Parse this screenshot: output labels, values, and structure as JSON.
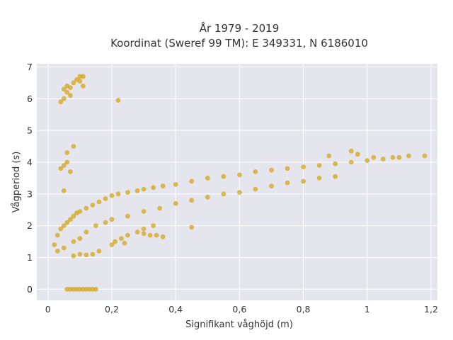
{
  "chart_data": {
    "type": "scatter",
    "title_lines": [
      "År 1979 - 2019",
      "Koordinat (Sweref 99 TM): E 349331, N 6186010"
    ],
    "xlabel": "Signifikant våghöjd (m)",
    "ylabel": "Vågperiod (s)",
    "xlim": [
      -0.035,
      1.22
    ],
    "ylim": [
      -0.35,
      7.1
    ],
    "x_ticks": [
      0,
      0.2,
      0.4,
      0.6,
      0.8,
      1.0,
      1.2
    ],
    "x_tick_labels": [
      "0",
      "0,2",
      "0,4",
      "0,6",
      "0,8",
      "1",
      "1,2"
    ],
    "y_ticks": [
      0,
      1,
      2,
      3,
      4,
      5,
      6,
      7
    ],
    "y_tick_labels": [
      "0",
      "1",
      "2",
      "3",
      "4",
      "5",
      "6",
      "7"
    ],
    "grid": true,
    "background_color": "#e5e5ed",
    "marker_color": "#d4a418",
    "series": [
      {
        "points": [
          [
            0.02,
            1.4
          ],
          [
            0.03,
            1.7
          ],
          [
            0.04,
            1.9
          ],
          [
            0.05,
            2.0
          ],
          [
            0.06,
            2.1
          ],
          [
            0.07,
            2.2
          ],
          [
            0.08,
            2.3
          ],
          [
            0.09,
            2.4
          ],
          [
            0.1,
            2.45
          ],
          [
            0.12,
            2.55
          ],
          [
            0.14,
            2.65
          ],
          [
            0.16,
            2.75
          ],
          [
            0.18,
            2.85
          ],
          [
            0.2,
            2.95
          ],
          [
            0.22,
            3.0
          ],
          [
            0.25,
            3.05
          ],
          [
            0.28,
            3.1
          ],
          [
            0.3,
            3.15
          ],
          [
            0.33,
            3.2
          ],
          [
            0.36,
            3.25
          ],
          [
            0.4,
            3.3
          ],
          [
            0.45,
            3.4
          ],
          [
            0.5,
            3.5
          ],
          [
            0.55,
            3.55
          ],
          [
            0.6,
            3.6
          ],
          [
            0.65,
            3.7
          ],
          [
            0.7,
            3.75
          ],
          [
            0.75,
            3.8
          ],
          [
            0.8,
            3.85
          ],
          [
            0.85,
            3.9
          ],
          [
            0.9,
            3.95
          ],
          [
            0.95,
            4.0
          ],
          [
            1.0,
            4.05
          ],
          [
            1.05,
            4.1
          ],
          [
            1.1,
            4.15
          ],
          [
            1.13,
            4.2
          ],
          [
            1.18,
            4.2
          ],
          [
            0.03,
            1.2
          ],
          [
            0.05,
            1.3
          ],
          [
            0.08,
            1.5
          ],
          [
            0.1,
            1.6
          ],
          [
            0.12,
            1.8
          ],
          [
            0.15,
            2.0
          ],
          [
            0.18,
            2.1
          ],
          [
            0.2,
            2.2
          ],
          [
            0.25,
            2.3
          ],
          [
            0.3,
            2.45
          ],
          [
            0.35,
            2.55
          ],
          [
            0.4,
            2.7
          ],
          [
            0.45,
            2.8
          ],
          [
            0.5,
            2.9
          ],
          [
            0.55,
            3.0
          ],
          [
            0.6,
            3.05
          ],
          [
            0.65,
            3.15
          ],
          [
            0.7,
            3.25
          ],
          [
            0.75,
            3.35
          ],
          [
            0.8,
            3.4
          ],
          [
            0.85,
            3.5
          ],
          [
            0.9,
            3.55
          ],
          [
            0.08,
            1.05
          ],
          [
            0.1,
            1.1
          ],
          [
            0.12,
            1.08
          ],
          [
            0.14,
            1.1
          ],
          [
            0.16,
            1.2
          ],
          [
            0.2,
            1.4
          ],
          [
            0.23,
            1.6
          ],
          [
            0.25,
            1.7
          ],
          [
            0.28,
            1.8
          ],
          [
            0.3,
            1.9
          ],
          [
            0.33,
            2.0
          ],
          [
            0.21,
            1.5
          ],
          [
            0.24,
            1.45
          ],
          [
            0.3,
            1.75
          ],
          [
            0.34,
            1.7
          ],
          [
            0.06,
            0.0
          ],
          [
            0.07,
            0.0
          ],
          [
            0.08,
            0.0
          ],
          [
            0.09,
            0.0
          ],
          [
            0.1,
            0.0
          ],
          [
            0.11,
            0.0
          ],
          [
            0.12,
            0.0
          ],
          [
            0.13,
            0.0
          ],
          [
            0.14,
            0.0
          ],
          [
            0.15,
            0.0
          ],
          [
            0.04,
            3.8
          ],
          [
            0.05,
            3.9
          ],
          [
            0.06,
            4.0
          ],
          [
            0.06,
            4.3
          ],
          [
            0.05,
            3.1
          ],
          [
            0.07,
            3.7
          ],
          [
            0.08,
            4.5
          ],
          [
            0.04,
            5.9
          ],
          [
            0.05,
            6.0
          ],
          [
            0.05,
            6.3
          ],
          [
            0.06,
            6.4
          ],
          [
            0.06,
            6.2
          ],
          [
            0.07,
            6.1
          ],
          [
            0.07,
            6.35
          ],
          [
            0.08,
            6.5
          ],
          [
            0.09,
            6.6
          ],
          [
            0.1,
            6.7
          ],
          [
            0.11,
            6.7
          ],
          [
            0.11,
            6.4
          ],
          [
            0.1,
            6.55
          ],
          [
            0.22,
            5.95
          ],
          [
            0.45,
            1.95
          ],
          [
            0.32,
            1.7
          ],
          [
            0.36,
            1.65
          ],
          [
            0.88,
            4.2
          ],
          [
            0.95,
            4.35
          ],
          [
            0.97,
            4.25
          ],
          [
            1.02,
            4.15
          ],
          [
            1.08,
            4.15
          ]
        ]
      }
    ]
  }
}
